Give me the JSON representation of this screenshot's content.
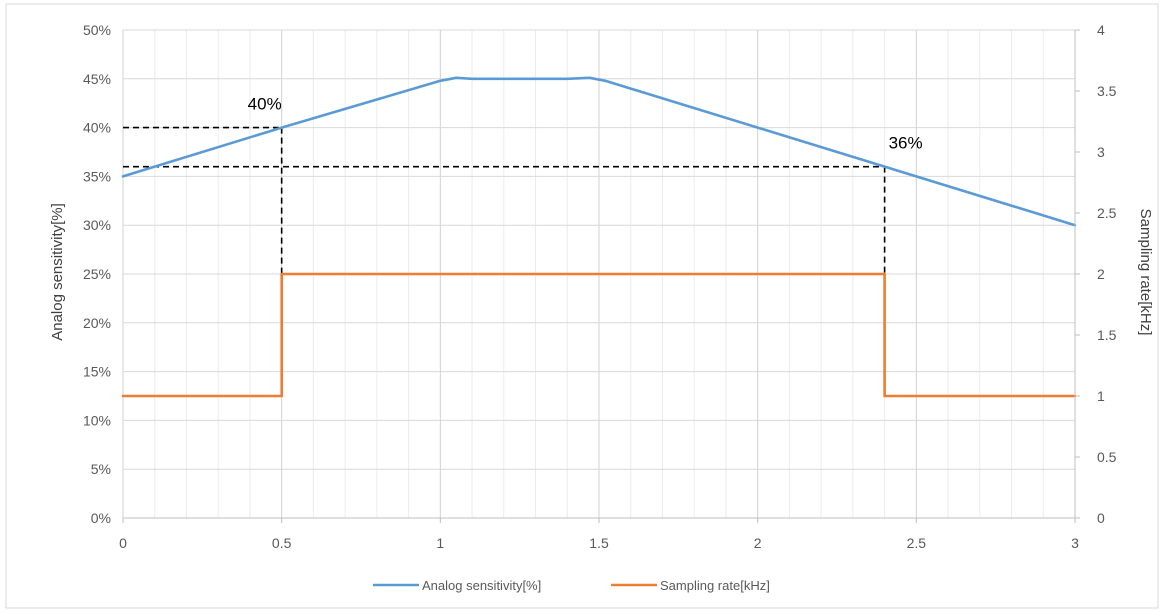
{
  "chart_data": {
    "type": "line",
    "x_axis": {
      "range": [
        0,
        3
      ],
      "ticks": [
        0,
        0.5,
        1,
        1.5,
        2,
        2.5,
        3
      ],
      "tick_labels": [
        "0",
        "0.5",
        "1",
        "1.5",
        "2",
        "2.5",
        "3"
      ],
      "minor_gridlines_per_major": 5
    },
    "y_left": {
      "label": "Analog sensitivity[%]",
      "range": [
        0,
        50
      ],
      "ticks": [
        0,
        5,
        10,
        15,
        20,
        25,
        30,
        35,
        40,
        45,
        50
      ],
      "tick_labels": [
        "0%",
        "5%",
        "10%",
        "15%",
        "20%",
        "25%",
        "30%",
        "35%",
        "40%",
        "45%",
        "50%"
      ]
    },
    "y_right": {
      "label": "Sampling rate[kHz]",
      "range": [
        0,
        4
      ],
      "ticks": [
        0,
        0.5,
        1,
        1.5,
        2,
        2.5,
        3,
        3.5,
        4
      ],
      "tick_labels": [
        "0",
        "0.5",
        "1",
        "1.5",
        "2",
        "2.5",
        "3",
        "3.5",
        "4"
      ]
    },
    "grid": true,
    "legend_position": "bottom",
    "series": [
      {
        "name": "Analog sensitivity[%]",
        "axis": "left",
        "color": "#5b9bd5",
        "step": false,
        "x": [
          0,
          0.5,
          1.0,
          1.05,
          1.1,
          1.4,
          1.47,
          1.52,
          2.0,
          2.4,
          3.0
        ],
        "y": [
          35,
          40,
          44.8,
          45.1,
          45,
          45,
          45.1,
          44.8,
          40,
          36,
          30
        ]
      },
      {
        "name": "Sampling rate[kHz]",
        "axis": "right",
        "color": "#ed7d31",
        "step": true,
        "x": [
          0,
          0.5,
          0.5,
          2.4,
          2.4,
          3.0
        ],
        "y": [
          1,
          1,
          2,
          2,
          1,
          1
        ]
      }
    ],
    "annotations": [
      {
        "text": "40%",
        "x": 0.5,
        "y": 40
      },
      {
        "text": "36%",
        "x": 2.4,
        "y": 36
      }
    ],
    "reference_lines": [
      {
        "x": 0.5,
        "y": 40
      },
      {
        "x": 2.4,
        "y": 36
      }
    ]
  }
}
